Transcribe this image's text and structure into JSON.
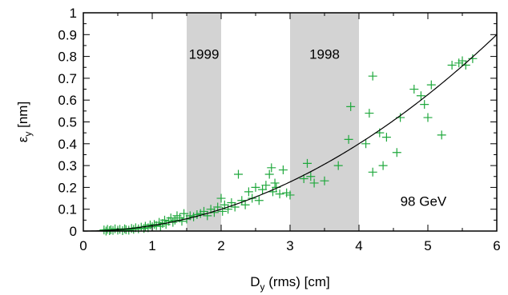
{
  "chart_data": {
    "type": "scatter",
    "title": "",
    "xlabel_main": "D",
    "xlabel_sub": "y",
    "xlabel_rest": " (rms) [cm]",
    "ylabel_main": "ε",
    "ylabel_sub": "y",
    "ylabel_rest": " [nm]",
    "xlim": [
      0,
      6
    ],
    "ylim": [
      0,
      1
    ],
    "x_ticks": [
      "0",
      "1",
      "2",
      "3",
      "4",
      "5",
      "6"
    ],
    "y_ticks": [
      "0",
      "0.1",
      "0.2",
      "0.3",
      "0.4",
      "0.5",
      "0.6",
      "0.7",
      "0.8",
      "0.9",
      "1"
    ],
    "annotation": "98 GeV",
    "shaded_bands": [
      {
        "label": "1999",
        "x_range": [
          1.5,
          2.0
        ]
      },
      {
        "label": "1998",
        "x_range": [
          3.0,
          4.0
        ]
      }
    ],
    "colors": {
      "points": "#1fa83c",
      "fit": "#000000",
      "band": "#d3d3d3"
    },
    "fit_curve": {
      "type": "line",
      "coefficient": 0.025,
      "exponent": 2
    },
    "series": [
      {
        "type": "scatter",
        "marker": "plus",
        "points": [
          [
            0.3,
            0.005
          ],
          [
            0.33,
            0.0
          ],
          [
            0.35,
            0.008
          ],
          [
            0.38,
            0.002
          ],
          [
            0.4,
            0.006
          ],
          [
            0.43,
            0.003
          ],
          [
            0.46,
            0.01
          ],
          [
            0.5,
            0.004
          ],
          [
            0.53,
            0.008
          ],
          [
            0.57,
            0.002
          ],
          [
            0.6,
            0.01
          ],
          [
            0.62,
            0.006
          ],
          [
            0.66,
            0.004
          ],
          [
            0.7,
            0.012
          ],
          [
            0.73,
            0.008
          ],
          [
            0.76,
            0.015
          ],
          [
            0.8,
            0.01
          ],
          [
            0.84,
            0.018
          ],
          [
            0.88,
            0.012
          ],
          [
            0.9,
            0.022
          ],
          [
            0.94,
            0.015
          ],
          [
            0.97,
            0.028
          ],
          [
            1.0,
            0.02
          ],
          [
            1.03,
            0.03
          ],
          [
            1.06,
            0.025
          ],
          [
            1.1,
            0.04
          ],
          [
            1.12,
            0.022
          ],
          [
            1.15,
            0.035
          ],
          [
            1.18,
            0.05
          ],
          [
            1.2,
            0.03
          ],
          [
            1.24,
            0.045
          ],
          [
            1.27,
            0.06
          ],
          [
            1.3,
            0.04
          ],
          [
            1.33,
            0.05
          ],
          [
            1.36,
            0.07
          ],
          [
            1.4,
            0.06
          ],
          [
            1.43,
            0.045
          ],
          [
            1.46,
            0.08
          ],
          [
            1.5,
            0.055
          ],
          [
            1.55,
            0.07
          ],
          [
            1.6,
            0.065
          ],
          [
            1.65,
            0.075
          ],
          [
            1.7,
            0.08
          ],
          [
            1.75,
            0.09
          ],
          [
            1.8,
            0.07
          ],
          [
            1.85,
            0.1
          ],
          [
            1.9,
            0.085
          ],
          [
            1.95,
            0.11
          ],
          [
            2.0,
            0.15
          ],
          [
            2.02,
            0.09
          ],
          [
            2.05,
            0.12
          ],
          [
            2.1,
            0.1
          ],
          [
            2.15,
            0.13
          ],
          [
            2.2,
            0.11
          ],
          [
            2.25,
            0.26
          ],
          [
            2.3,
            0.14
          ],
          [
            2.35,
            0.12
          ],
          [
            2.4,
            0.18
          ],
          [
            2.45,
            0.15
          ],
          [
            2.5,
            0.2
          ],
          [
            2.55,
            0.14
          ],
          [
            2.6,
            0.19
          ],
          [
            2.65,
            0.21
          ],
          [
            2.7,
            0.26
          ],
          [
            2.73,
            0.29
          ],
          [
            2.75,
            0.18
          ],
          [
            2.78,
            0.22
          ],
          [
            2.8,
            0.2
          ],
          [
            2.85,
            0.17
          ],
          [
            2.9,
            0.28
          ],
          [
            2.95,
            0.175
          ],
          [
            3.0,
            0.165
          ],
          [
            3.2,
            0.24
          ],
          [
            3.25,
            0.31
          ],
          [
            3.3,
            0.25
          ],
          [
            3.35,
            0.22
          ],
          [
            3.5,
            0.23
          ],
          [
            3.7,
            0.3
          ],
          [
            3.85,
            0.42
          ],
          [
            3.88,
            0.57
          ],
          [
            4.1,
            0.4
          ],
          [
            4.15,
            0.54
          ],
          [
            4.2,
            0.71
          ],
          [
            4.2,
            0.27
          ],
          [
            4.3,
            0.45
          ],
          [
            4.35,
            0.3
          ],
          [
            4.4,
            0.43
          ],
          [
            4.55,
            0.36
          ],
          [
            4.6,
            0.52
          ],
          [
            4.8,
            0.65
          ],
          [
            4.9,
            0.62
          ],
          [
            4.95,
            0.58
          ],
          [
            5.0,
            0.52
          ],
          [
            5.05,
            0.67
          ],
          [
            5.2,
            0.44
          ],
          [
            5.35,
            0.76
          ],
          [
            5.45,
            0.77
          ],
          [
            5.5,
            0.78
          ],
          [
            5.55,
            0.76
          ],
          [
            5.65,
            0.79
          ]
        ]
      }
    ]
  }
}
